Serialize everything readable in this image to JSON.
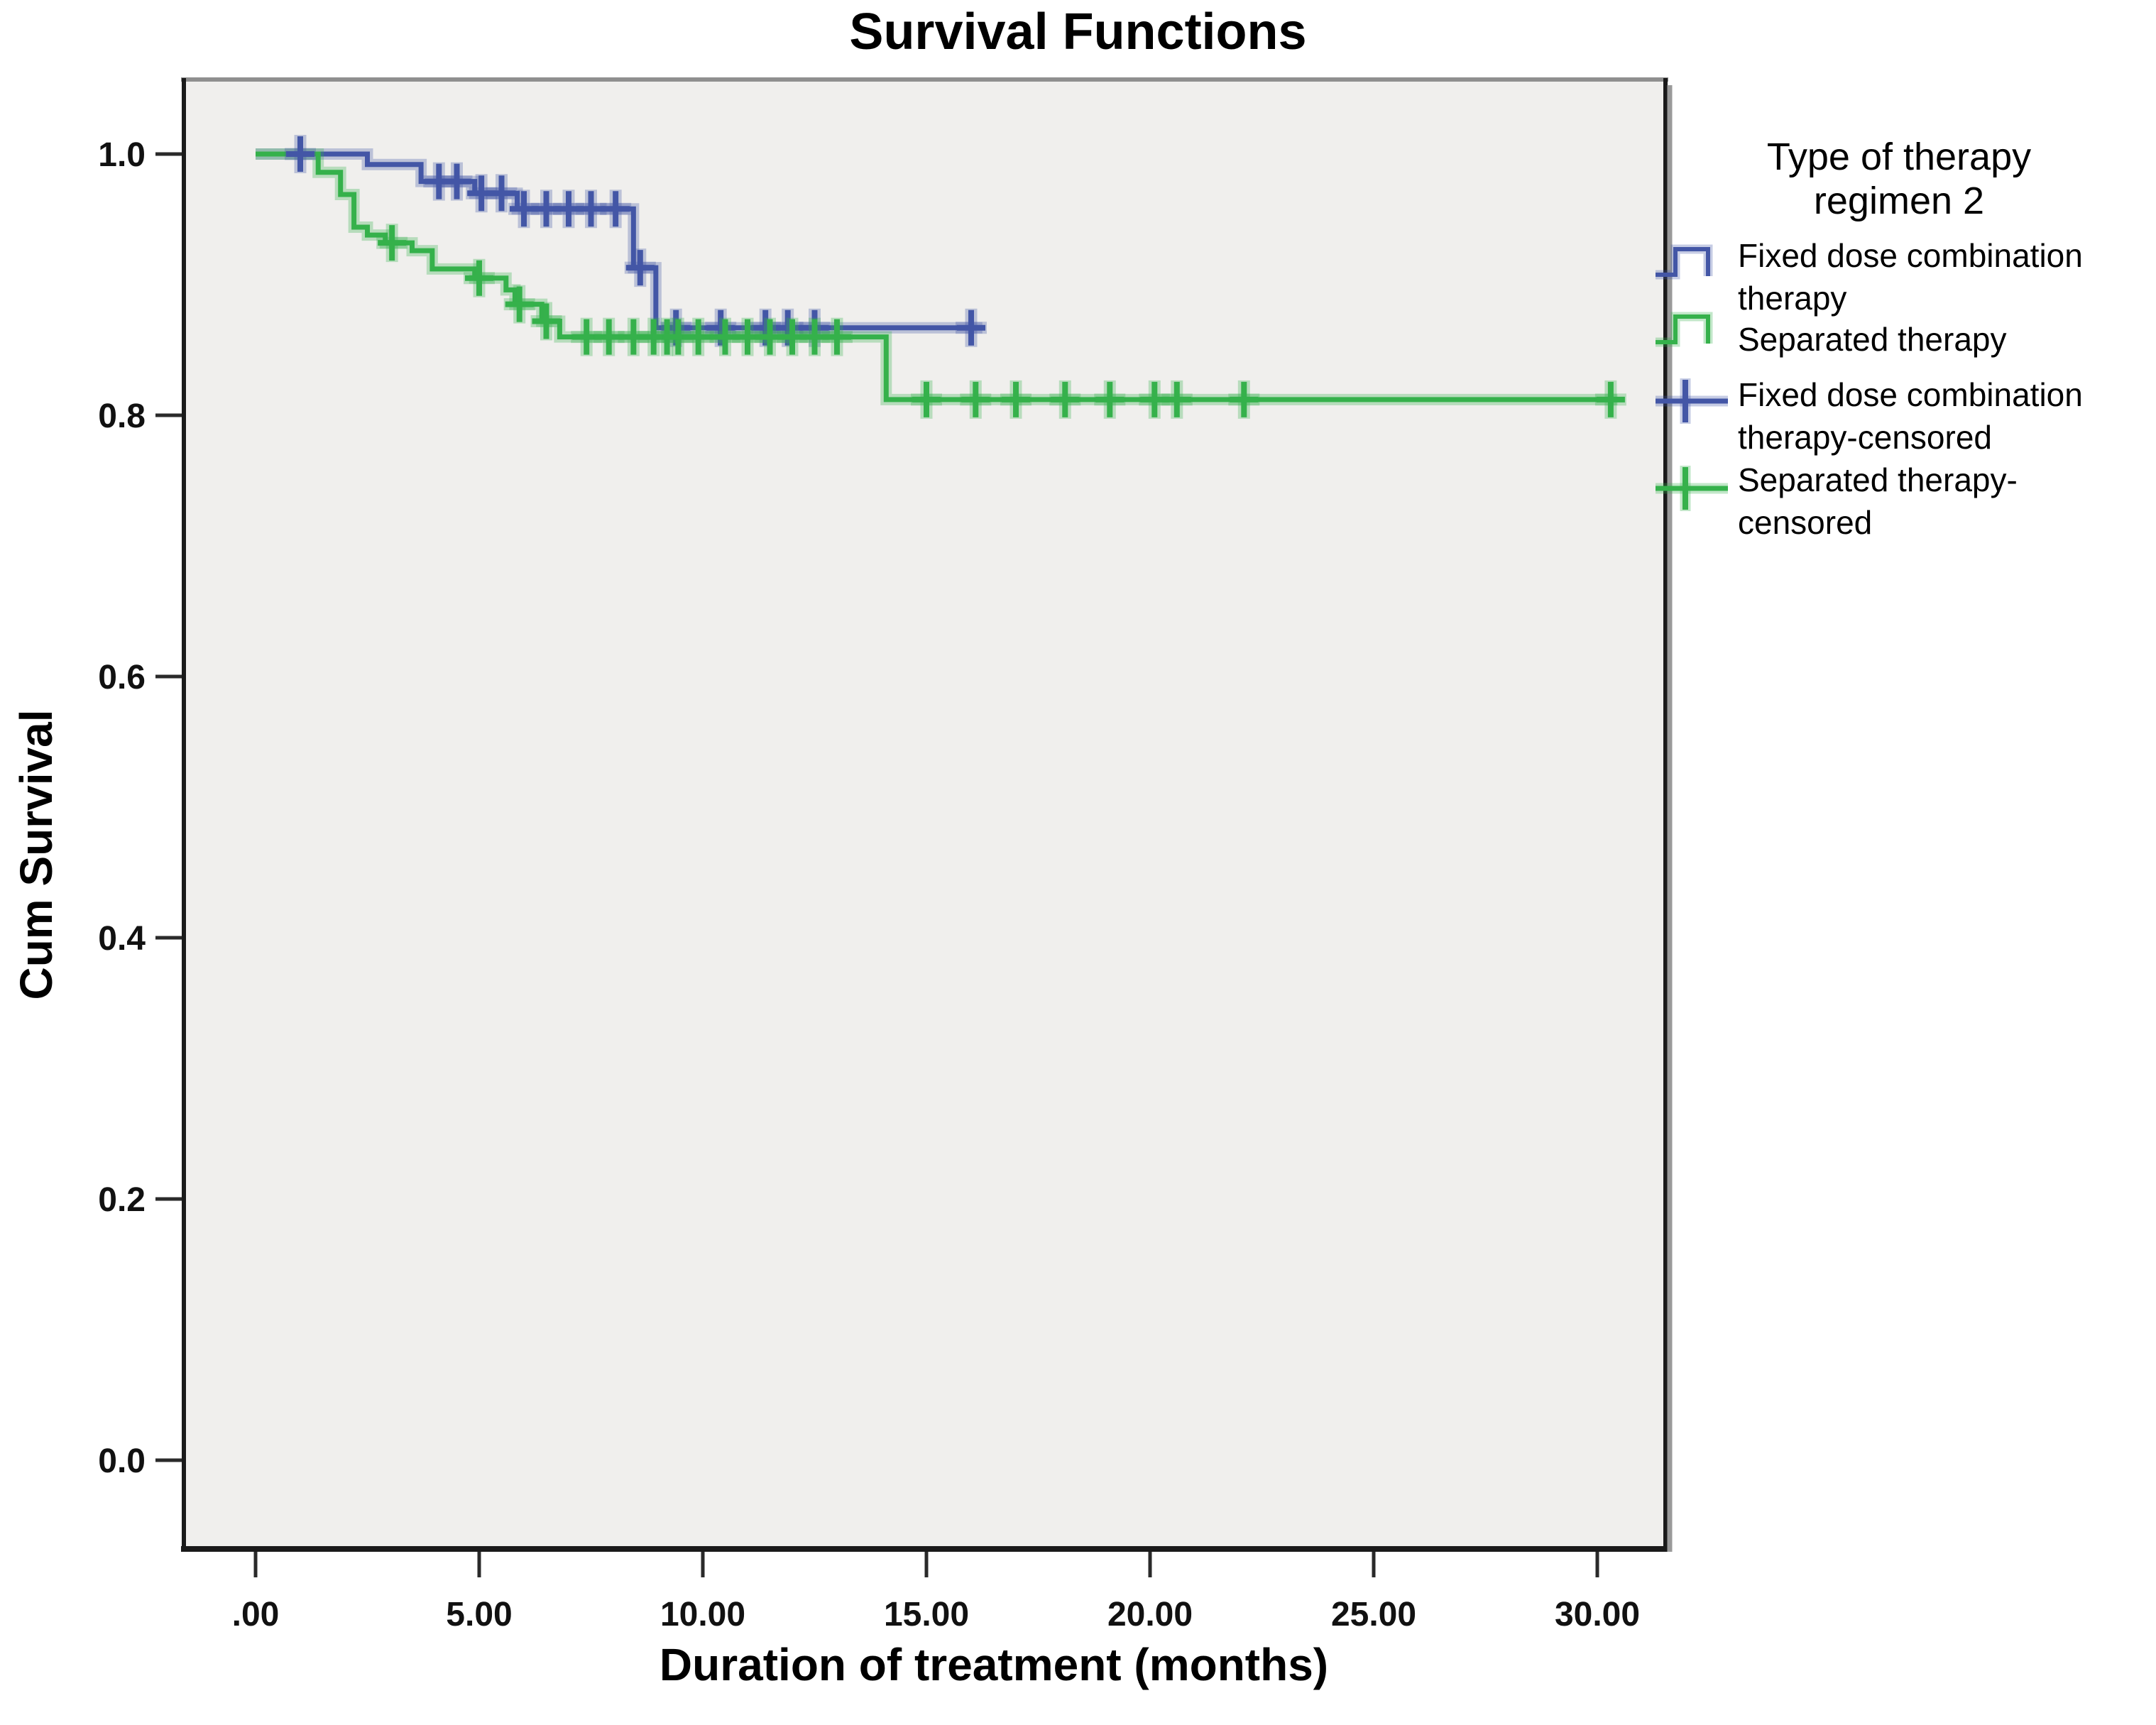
{
  "title": "Survival Functions",
  "axes": {
    "x": {
      "label": "Duration of treatment (months)",
      "tick_labels": [
        ".00",
        "5.00",
        "10.00",
        "15.00",
        "20.00",
        "25.00",
        "30.00"
      ],
      "tick_values": [
        0,
        5,
        10,
        15,
        20,
        25,
        30
      ]
    },
    "y": {
      "label": "Cum Survival",
      "tick_labels": [
        "1.0",
        "0.8",
        "0.6",
        "0.4",
        "0.2",
        "0.0"
      ],
      "tick_values": [
        1.0,
        0.8,
        0.6,
        0.4,
        0.2,
        0.0
      ]
    }
  },
  "legend": {
    "title": "Type of therapy regimen 2",
    "entries": [
      {
        "label": "Fixed dose combination therapy",
        "icon": "step-line",
        "series": 0
      },
      {
        "label": "Separated therapy",
        "icon": "step-line",
        "series": 1
      },
      {
        "label": "Fixed dose combination therapy-censored",
        "icon": "censor-plus",
        "series": 0
      },
      {
        "label": "Separated therapy-censored",
        "icon": "censor-plus",
        "series": 1
      }
    ]
  },
  "colors": {
    "fixed_dose_blue": "#4356a6",
    "separated_green": "#35b14b",
    "plot_background": "#f0efed",
    "frame_dark": "#1a1a1a",
    "frame_shadow": "#9a9a9a",
    "frame_top_gray": "#8f8f8f",
    "text": "#000000"
  },
  "chart_data": {
    "type": "line",
    "subtype": "kaplan-meier-step",
    "title": "Survival Functions",
    "xlabel": "Duration of treatment (months)",
    "ylabel": "Cum Survival",
    "xlim": [
      0,
      31.5
    ],
    "ylim": [
      0.0,
      1.0
    ],
    "grid": false,
    "legend_position": "right",
    "series": [
      {
        "name": "Fixed dose combination therapy",
        "color": "#4356a6",
        "steps": [
          [
            0,
            1.0
          ],
          [
            2.5,
            0.992
          ],
          [
            3.7,
            0.979
          ],
          [
            4.9,
            0.97
          ],
          [
            5.85,
            0.958
          ],
          [
            8.45,
            0.913
          ],
          [
            8.95,
            0.867
          ]
        ],
        "end_time": 16.25,
        "censored": [
          [
            1.0,
            1.0
          ],
          [
            4.1,
            0.979
          ],
          [
            4.5,
            0.979
          ],
          [
            5.05,
            0.97
          ],
          [
            5.5,
            0.97
          ],
          [
            6.0,
            0.958
          ],
          [
            6.5,
            0.958
          ],
          [
            7.0,
            0.958
          ],
          [
            7.5,
            0.958
          ],
          [
            8.05,
            0.958
          ],
          [
            8.6,
            0.913
          ],
          [
            9.4,
            0.867
          ],
          [
            10.4,
            0.867
          ],
          [
            11.4,
            0.867
          ],
          [
            11.9,
            0.867
          ],
          [
            12.5,
            0.867
          ],
          [
            16.0,
            0.867
          ]
        ]
      },
      {
        "name": "Separated therapy",
        "color": "#35b14b",
        "steps": [
          [
            0,
            1.0
          ],
          [
            1.4,
            0.986
          ],
          [
            1.9,
            0.969
          ],
          [
            2.2,
            0.944
          ],
          [
            2.5,
            0.938
          ],
          [
            2.9,
            0.932
          ],
          [
            3.5,
            0.926
          ],
          [
            3.95,
            0.912
          ],
          [
            4.9,
            0.905
          ],
          [
            5.6,
            0.896
          ],
          [
            5.8,
            0.885
          ],
          [
            6.4,
            0.872
          ],
          [
            6.8,
            0.86
          ],
          [
            14.1,
            0.812
          ]
        ],
        "end_time": 30.45,
        "censored": [
          [
            3.05,
            0.932
          ],
          [
            5.0,
            0.905
          ],
          [
            5.9,
            0.885
          ],
          [
            6.5,
            0.872
          ],
          [
            7.4,
            0.86
          ],
          [
            7.9,
            0.86
          ],
          [
            8.45,
            0.86
          ],
          [
            8.9,
            0.86
          ],
          [
            9.2,
            0.86
          ],
          [
            9.45,
            0.86
          ],
          [
            9.9,
            0.86
          ],
          [
            10.5,
            0.86
          ],
          [
            11.0,
            0.86
          ],
          [
            11.5,
            0.86
          ],
          [
            12.0,
            0.86
          ],
          [
            12.5,
            0.86
          ],
          [
            13.0,
            0.86
          ],
          [
            15.0,
            0.812
          ],
          [
            16.1,
            0.812
          ],
          [
            17.0,
            0.812
          ],
          [
            18.1,
            0.812
          ],
          [
            19.1,
            0.812
          ],
          [
            20.1,
            0.812
          ],
          [
            20.6,
            0.812
          ],
          [
            22.1,
            0.812
          ],
          [
            30.3,
            0.812
          ]
        ]
      }
    ]
  }
}
